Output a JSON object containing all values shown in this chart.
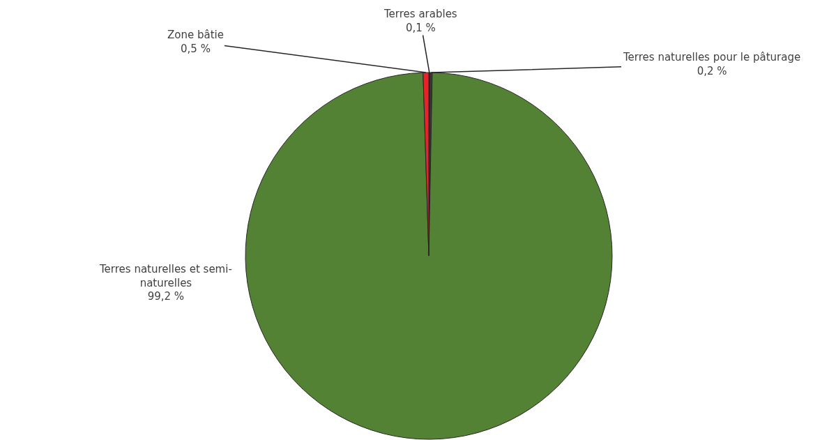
{
  "chart_data": {
    "type": "pie",
    "categories": [
      "Terres arables",
      "Terres naturelles pour le pâturage",
      "Terres naturelles et semi-naturelles",
      "Zone bâtie"
    ],
    "values": [
      0.1,
      0.2,
      99.2,
      0.5
    ],
    "colors": [
      "#262626",
      "#3a3a3a",
      "#548235",
      "#e8222a"
    ],
    "value_labels": [
      "0,1 %",
      "0,2 %",
      "99,2 %",
      "0,5 %"
    ],
    "legend": false
  }
}
